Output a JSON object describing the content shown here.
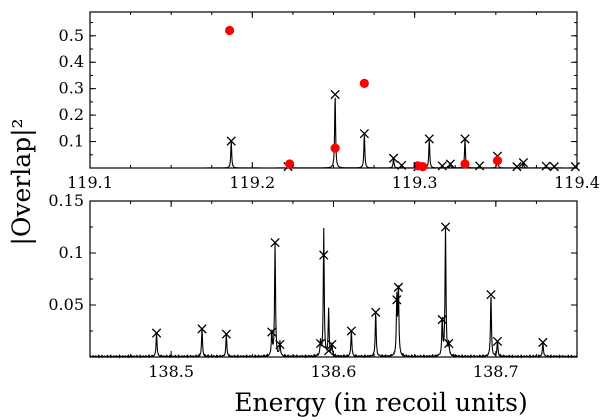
{
  "chart_data": {
    "ylabel": "|Overlap|²",
    "xlabel": "Energy (in recoil units)",
    "colors": {
      "line": "#000000",
      "points": "#ff0000"
    },
    "panels": [
      {
        "name": "top",
        "type": "line",
        "xlim": [
          119.1,
          119.4
        ],
        "ylim": [
          0,
          0.59
        ],
        "xticks": [
          119.1,
          119.2,
          119.3,
          119.4
        ],
        "xtick_labels": [
          "119.1",
          "119.2",
          "119.3",
          "119.4"
        ],
        "yticks": [
          0.1,
          0.2,
          0.3,
          0.4,
          0.5
        ],
        "ytick_labels": [
          "0.1",
          "0.2",
          "0.3",
          "0.4",
          "0.5"
        ],
        "peaks": [
          {
            "x": 119.187,
            "y": 0.102
          },
          {
            "x": 119.222,
            "y": 0.005
          },
          {
            "x": 119.251,
            "y": 0.278
          },
          {
            "x": 119.269,
            "y": 0.13
          },
          {
            "x": 119.287,
            "y": 0.037
          },
          {
            "x": 119.292,
            "y": 0.01
          },
          {
            "x": 119.302,
            "y": 0.005
          },
          {
            "x": 119.309,
            "y": 0.11
          },
          {
            "x": 119.317,
            "y": 0.008
          },
          {
            "x": 119.322,
            "y": 0.015
          },
          {
            "x": 119.331,
            "y": 0.11
          },
          {
            "x": 119.34,
            "y": 0.008
          },
          {
            "x": 119.351,
            "y": 0.045
          },
          {
            "x": 119.363,
            "y": 0.005
          },
          {
            "x": 119.367,
            "y": 0.02
          },
          {
            "x": 119.381,
            "y": 0.007
          },
          {
            "x": 119.386,
            "y": 0.005
          },
          {
            "x": 119.399,
            "y": 0.005
          }
        ],
        "dots": [
          {
            "x": 119.186,
            "y": 0.52
          },
          {
            "x": 119.223,
            "y": 0.015
          },
          {
            "x": 119.251,
            "y": 0.075
          },
          {
            "x": 119.269,
            "y": 0.32
          },
          {
            "x": 119.302,
            "y": 0.008
          },
          {
            "x": 119.305,
            "y": 0.005
          },
          {
            "x": 119.331,
            "y": 0.015
          },
          {
            "x": 119.351,
            "y": 0.028
          }
        ]
      },
      {
        "name": "bottom",
        "type": "line",
        "xlim": [
          138.45,
          138.75
        ],
        "ylim": [
          0,
          0.15
        ],
        "xticks": [
          138.5,
          138.6,
          138.7
        ],
        "xtick_labels": [
          "138.5",
          "138.6",
          "138.7"
        ],
        "yticks": [
          0.05,
          0.1,
          0.15
        ],
        "ytick_labels": [
          "0.05",
          "0.1",
          "0.15"
        ],
        "peaks": [
          {
            "x": 138.491,
            "y": 0.023,
            "h": 0.023
          },
          {
            "x": 138.519,
            "y": 0.027,
            "h": 0.027
          },
          {
            "x": 138.534,
            "y": 0.022,
            "h": 0.022
          },
          {
            "x": 138.562,
            "y": 0.024,
            "h": 0.024
          },
          {
            "x": 138.564,
            "y": 0.11,
            "h": 0.11
          },
          {
            "x": 138.567,
            "y": 0.012,
            "h": 0.014
          },
          {
            "x": 138.592,
            "y": 0.013,
            "h": 0.014
          },
          {
            "x": 138.594,
            "y": 0.098,
            "h": 0.122
          },
          {
            "x": 138.597,
            "y": 0.006,
            "h": 0.045
          },
          {
            "x": 138.599,
            "y": 0.012,
            "h": 0.012
          },
          {
            "x": 138.611,
            "y": 0.025,
            "h": 0.025
          },
          {
            "x": 138.626,
            "y": 0.043,
            "h": 0.043
          },
          {
            "x": 138.639,
            "y": 0.055,
            "h": 0.055
          },
          {
            "x": 138.64,
            "y": 0.067,
            "h": 0.067
          },
          {
            "x": 138.667,
            "y": 0.036,
            "h": 0.036
          },
          {
            "x": 138.669,
            "y": 0.125,
            "h": 0.125
          },
          {
            "x": 138.671,
            "y": 0.013,
            "h": 0.013
          },
          {
            "x": 138.697,
            "y": 0.06,
            "h": 0.06
          },
          {
            "x": 138.701,
            "y": 0.015,
            "h": 0.015
          },
          {
            "x": 138.729,
            "y": 0.014,
            "h": 0.014
          }
        ]
      }
    ]
  }
}
